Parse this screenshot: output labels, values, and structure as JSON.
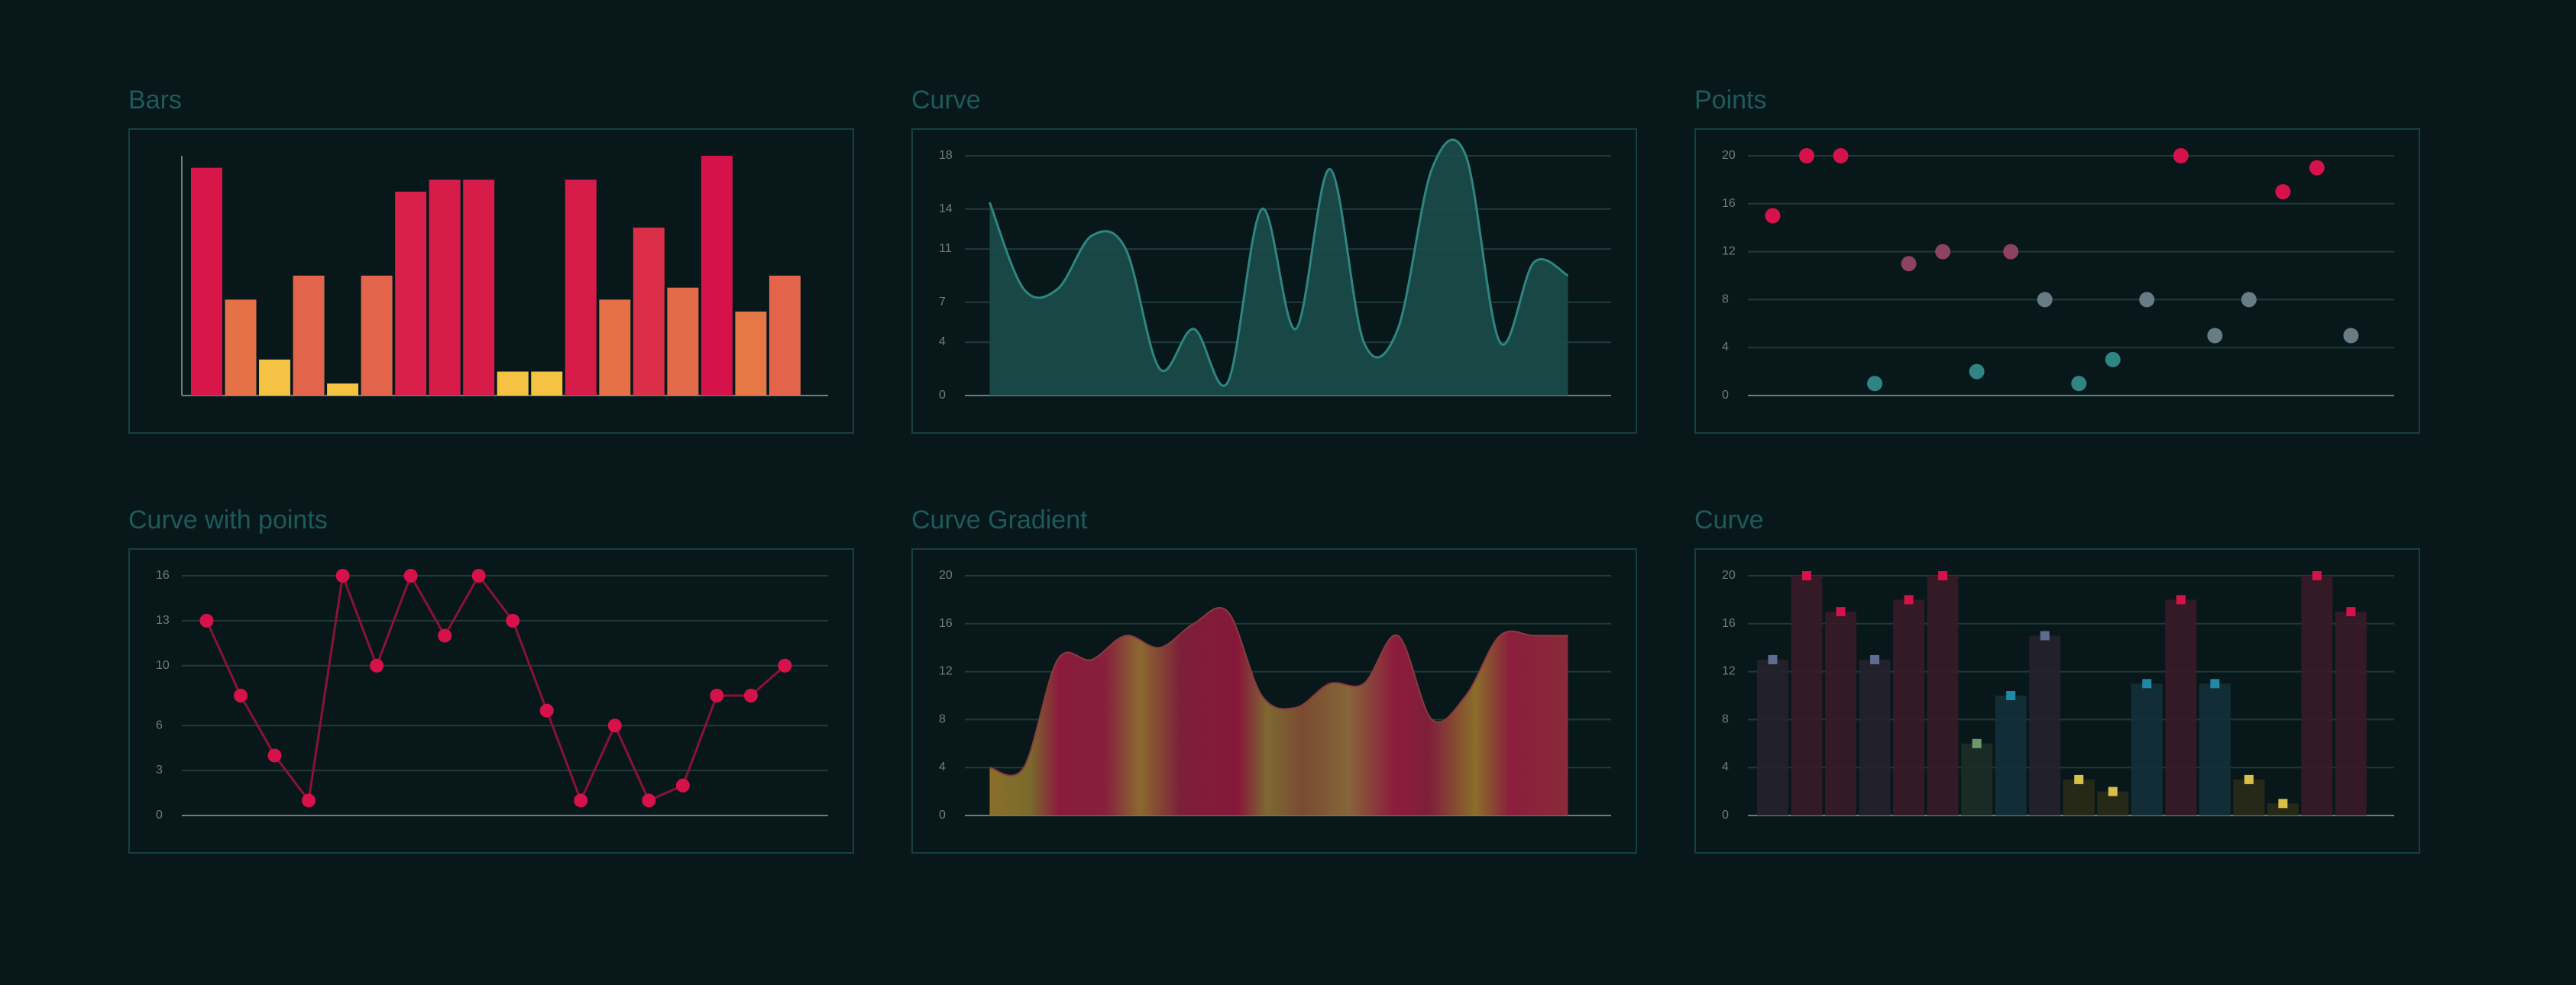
{
  "colors": {
    "background": "#08181a",
    "frame": "#164040",
    "title": "#1d5a5a",
    "grid": "#1f3a3a",
    "axis": "#6b7e7e",
    "red": "#d6124a",
    "orange": "#e88a3e",
    "yellow": "#f5c344",
    "teal": "#2e8582",
    "teal_fill": "#1b4c4a",
    "muted": "#687c86"
  },
  "charts": [
    {
      "title": "Bars",
      "chart_data": {
        "type": "bar",
        "values": [
          19,
          8,
          3,
          10,
          1,
          10,
          17,
          18,
          18,
          2,
          2,
          18,
          8,
          14,
          9,
          20,
          7,
          10
        ],
        "ylim": [
          0,
          20
        ],
        "grid": false,
        "yticks": []
      }
    },
    {
      "title": "Curve",
      "chart_data": {
        "type": "area",
        "values": [
          14.5,
          8,
          8,
          12,
          11,
          2,
          5,
          1,
          14,
          5,
          17,
          4,
          5,
          17,
          18,
          4,
          10,
          9
        ],
        "ylim": [
          0,
          18
        ],
        "yticks": [
          0,
          4,
          7,
          11,
          14,
          18
        ],
        "grid": true
      }
    },
    {
      "title": "Points",
      "chart_data": {
        "type": "scatter",
        "values": [
          15,
          20,
          20,
          1,
          11,
          12,
          2,
          12,
          8,
          1,
          3,
          8,
          20,
          5,
          8,
          17,
          19,
          5
        ],
        "ylim": [
          0,
          20
        ],
        "yticks": [
          0,
          4,
          8,
          12,
          16,
          20
        ],
        "grid": true
      }
    },
    {
      "title": "Curve with points",
      "chart_data": {
        "type": "line",
        "values": [
          13,
          8,
          4,
          1,
          16,
          10,
          16,
          12,
          16,
          13,
          7,
          1,
          6,
          1,
          2,
          8,
          8,
          10
        ],
        "ylim": [
          0,
          16
        ],
        "yticks": [
          0,
          3,
          6,
          10,
          13,
          16
        ],
        "grid": true
      }
    },
    {
      "title": "Curve Gradient",
      "chart_data": {
        "type": "area",
        "values": [
          4,
          4,
          13,
          13,
          15,
          14,
          16,
          17,
          10,
          9,
          11,
          11,
          15,
          8,
          10,
          15,
          15,
          15
        ],
        "ylim": [
          0,
          20
        ],
        "yticks": [
          0,
          4,
          8,
          12,
          16,
          20
        ],
        "grid": true
      }
    },
    {
      "title": "Curve",
      "chart_data": {
        "type": "bar",
        "values": [
          13,
          20,
          17,
          13,
          18,
          20,
          6,
          10,
          15,
          3,
          2,
          11,
          18,
          11,
          3,
          1,
          20,
          17
        ],
        "ylim": [
          0,
          20
        ],
        "yticks": [
          0,
          4,
          8,
          12,
          16,
          20
        ],
        "grid": true
      }
    }
  ]
}
